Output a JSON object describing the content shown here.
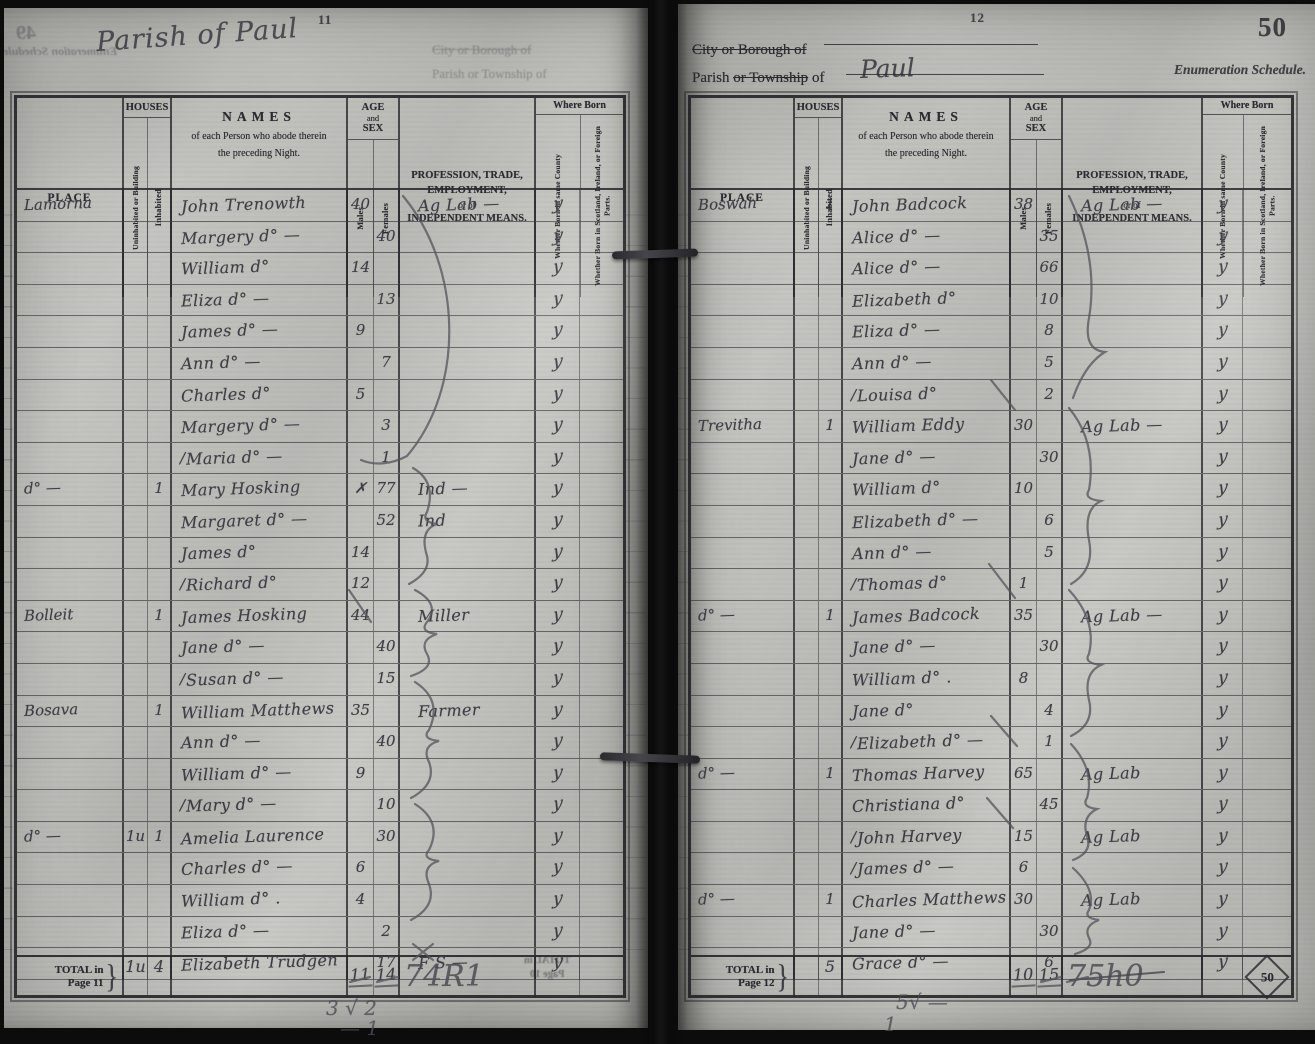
{
  "table_header": {
    "place": "PLACE",
    "houses": "HOUSES",
    "uninhabited": "Uninhabited or Building",
    "inhabited": "Inhabited",
    "names_title": "NAMES",
    "names_sub1": "of each Person who abode therein",
    "names_sub2": "the preceding Night.",
    "age_line1": "AGE",
    "age_line2": "and",
    "age_line3": "SEX",
    "males": "Males",
    "females": "Females",
    "profession_l1": "PROFESSION, TRADE,",
    "profession_l2": "EMPLOYMENT,",
    "profession_l3": "or of",
    "profession_l4": "INDEPENDENT MEANS.",
    "where_born": "Where Born",
    "born_same_county": "Whether Born in same County",
    "born_elsewhere": "Whether Born in Scotland, Ireland, or Foreign Parts."
  },
  "left_page": {
    "page_number": "11",
    "handwritten_title": "Parish of Paul",
    "bleed": {
      "corner": "49",
      "schedule": "Enumeration Schedule.",
      "line1": "City or Borough of",
      "line2": "Parish or Township of",
      "total1": "TOTAL in",
      "total2": "Page 10"
    },
    "pencil_note1": "3 √ 2",
    "pencil_note2": "— 1",
    "total_row": {
      "label1": "TOTAL in",
      "label2": "Page 11",
      "brace": "}",
      "u": "1u",
      "i": "4",
      "m": "11",
      "f": "14",
      "scribble": "74R1"
    },
    "rows": [
      {
        "place": "Lamorna",
        "u": "",
        "i": "",
        "mark": "",
        "name": "John Trenowth",
        "m": "40",
        "f": "",
        "prof": "Ag Lab —",
        "born": "y"
      },
      {
        "place": "",
        "u": "",
        "i": "",
        "mark": "",
        "name": "Margery d° —",
        "m": "",
        "f": "40",
        "prof": "",
        "born": "y"
      },
      {
        "place": "",
        "u": "",
        "i": "",
        "mark": "",
        "name": "William d°",
        "m": "14",
        "f": "",
        "prof": "",
        "born": "y"
      },
      {
        "place": "",
        "u": "",
        "i": "",
        "mark": "",
        "name": "Eliza d° —",
        "m": "",
        "f": "13",
        "prof": "",
        "born": "y"
      },
      {
        "place": "",
        "u": "",
        "i": "",
        "mark": "",
        "name": "James d° —",
        "m": "9",
        "f": "",
        "prof": "",
        "born": "y"
      },
      {
        "place": "",
        "u": "",
        "i": "",
        "mark": "",
        "name": "Ann d° —",
        "m": "",
        "f": "7",
        "prof": "",
        "born": "y"
      },
      {
        "place": "",
        "u": "",
        "i": "",
        "mark": "",
        "name": "Charles d°",
        "m": "5",
        "f": "",
        "prof": "",
        "born": "y"
      },
      {
        "place": "",
        "u": "",
        "i": "",
        "mark": "",
        "name": "Margery d° —",
        "m": "",
        "f": "3",
        "prof": "",
        "born": "y"
      },
      {
        "place": "",
        "u": "",
        "i": "",
        "mark": "∕",
        "name": "Maria d° —",
        "m": "",
        "f": "1",
        "prof": "",
        "born": "y"
      },
      {
        "place": "d° —",
        "u": "",
        "i": "1",
        "mark": "",
        "name": "Mary Hosking",
        "m": "✗",
        "f": "77",
        "prof": "Ind —",
        "born": "y"
      },
      {
        "place": "",
        "u": "",
        "i": "",
        "mark": "",
        "name": "Margaret d° —",
        "m": "",
        "f": "52",
        "prof": "Ind",
        "born": "y"
      },
      {
        "place": "",
        "u": "",
        "i": "",
        "mark": "",
        "name": "James d°",
        "m": "14",
        "f": "",
        "prof": "",
        "born": "y"
      },
      {
        "place": "",
        "u": "",
        "i": "",
        "mark": "∕",
        "name": "Richard d°",
        "m": "12",
        "f": "",
        "prof": "",
        "born": "y"
      },
      {
        "place": "Bolleit",
        "u": "",
        "i": "1",
        "mark": "",
        "name": "James Hosking",
        "m": "44",
        "f": "",
        "prof": "Miller",
        "born": "y"
      },
      {
        "place": "",
        "u": "",
        "i": "",
        "mark": "",
        "name": "Jane d° —",
        "m": "",
        "f": "40",
        "prof": "",
        "born": "y"
      },
      {
        "place": "",
        "u": "",
        "i": "",
        "mark": "∕",
        "name": "Susan d° —",
        "m": "",
        "f": "15",
        "prof": "",
        "born": "y"
      },
      {
        "place": "Bosava",
        "u": "",
        "i": "1",
        "mark": "",
        "name": "William Matthews",
        "m": "35",
        "f": "",
        "prof": "Farmer",
        "born": "y"
      },
      {
        "place": "",
        "u": "",
        "i": "",
        "mark": "",
        "name": "Ann d° —",
        "m": "",
        "f": "40",
        "prof": "",
        "born": "y"
      },
      {
        "place": "",
        "u": "",
        "i": "",
        "mark": "",
        "name": "William d° —",
        "m": "9",
        "f": "",
        "prof": "",
        "born": "y"
      },
      {
        "place": "",
        "u": "",
        "i": "",
        "mark": "∕",
        "name": "Mary d° —",
        "m": "",
        "f": "10",
        "prof": "",
        "born": "y"
      },
      {
        "place": "d° —",
        "u": "1u",
        "i": "1",
        "mark": "",
        "name": "Amelia Laurence",
        "m": "",
        "f": "30",
        "prof": "",
        "born": "y"
      },
      {
        "place": "",
        "u": "",
        "i": "",
        "mark": "",
        "name": "Charles d° —",
        "m": "6",
        "f": "",
        "prof": "",
        "born": "y"
      },
      {
        "place": "",
        "u": "",
        "i": "",
        "mark": "",
        "name": "William d° .",
        "m": "4",
        "f": "",
        "prof": "",
        "born": "y"
      },
      {
        "place": "",
        "u": "",
        "i": "",
        "mark": "",
        "name": "Eliza  d° —",
        "m": "",
        "f": "2",
        "prof": "",
        "born": "y"
      },
      {
        "place": "",
        "u": "",
        "i": "",
        "mark": "",
        "name": "Elizabeth Trudgen",
        "m": "",
        "f": "17",
        "prof": "F S —",
        "born": "y"
      }
    ]
  },
  "right_page": {
    "page_number": "12",
    "stamp_number": "50",
    "header": {
      "line1": "City or Borough of",
      "line2_a": "Parish",
      "line2_b": "or Township",
      "line2_c": "of",
      "parish_value": "Paul",
      "schedule": "Enumeration Schedule."
    },
    "pencil_note1": "5√ —",
    "pencil_note2": "1",
    "total_row": {
      "label1": "TOTAL in",
      "label2": "Page 12",
      "brace": "}",
      "u": "",
      "i": "5",
      "m": "10",
      "f": "15",
      "scribble": "75h0",
      "stamp": "50"
    },
    "rows": [
      {
        "place": "Boswah",
        "u": "",
        "i": "1",
        "mark": "",
        "name": "John Badcock",
        "m": "38",
        "f": "",
        "prof": "Ag Lab —",
        "born": "y"
      },
      {
        "place": "",
        "u": "",
        "i": "",
        "mark": "",
        "name": "Alice d° —",
        "m": "",
        "f": "35",
        "prof": "",
        "born": "y"
      },
      {
        "place": "",
        "u": "",
        "i": "",
        "mark": "",
        "name": "Alice d° —",
        "m": "",
        "f": "66",
        "prof": "",
        "born": "y"
      },
      {
        "place": "",
        "u": "",
        "i": "",
        "mark": "",
        "name": "Elizabeth d°",
        "m": "",
        "f": "10",
        "prof": "",
        "born": "y"
      },
      {
        "place": "",
        "u": "",
        "i": "",
        "mark": "",
        "name": "Eliza  d° —",
        "m": "",
        "f": "8",
        "prof": "",
        "born": "y"
      },
      {
        "place": "",
        "u": "",
        "i": "",
        "mark": "",
        "name": "Ann d° —",
        "m": "",
        "f": "5",
        "prof": "",
        "born": "y"
      },
      {
        "place": "",
        "u": "",
        "i": "",
        "mark": "∕",
        "name": "Louisa d°",
        "m": "",
        "f": "2",
        "prof": "",
        "born": "y"
      },
      {
        "place": "Trevitha",
        "u": "",
        "i": "1",
        "mark": "",
        "name": "William Eddy",
        "m": "30",
        "f": "",
        "prof": "Ag Lab —",
        "born": "y"
      },
      {
        "place": "",
        "u": "",
        "i": "",
        "mark": "",
        "name": "Jane d° —",
        "m": "",
        "f": "30",
        "prof": "",
        "born": "y"
      },
      {
        "place": "",
        "u": "",
        "i": "",
        "mark": "",
        "name": "William d°",
        "m": "10",
        "f": "",
        "prof": "",
        "born": "y"
      },
      {
        "place": "",
        "u": "",
        "i": "",
        "mark": "",
        "name": "Elizabeth d° —",
        "m": "",
        "f": "6",
        "prof": "",
        "born": "y"
      },
      {
        "place": "",
        "u": "",
        "i": "",
        "mark": "",
        "name": "Ann d° —",
        "m": "",
        "f": "5",
        "prof": "",
        "born": "y"
      },
      {
        "place": "",
        "u": "",
        "i": "",
        "mark": "∕",
        "name": "Thomas d°",
        "m": "1",
        "f": "",
        "prof": "",
        "born": "y"
      },
      {
        "place": "d° —",
        "u": "",
        "i": "1",
        "mark": "",
        "name": "James Badcock",
        "m": "35",
        "f": "",
        "prof": "Ag Lab —",
        "born": "y"
      },
      {
        "place": "",
        "u": "",
        "i": "",
        "mark": "",
        "name": "Jane d° —",
        "m": "",
        "f": "30",
        "prof": "",
        "born": "y"
      },
      {
        "place": "",
        "u": "",
        "i": "",
        "mark": "",
        "name": "William d° .",
        "m": "8",
        "f": "",
        "prof": "",
        "born": "y"
      },
      {
        "place": "",
        "u": "",
        "i": "",
        "mark": "",
        "name": "Jane  d°",
        "m": "",
        "f": "4",
        "prof": "",
        "born": "y"
      },
      {
        "place": "",
        "u": "",
        "i": "",
        "mark": "∕",
        "name": "Elizabeth d° —",
        "m": "",
        "f": "1",
        "prof": "",
        "born": "y"
      },
      {
        "place": "d° —",
        "u": "",
        "i": "1",
        "mark": "",
        "name": "Thomas Harvey",
        "m": "65",
        "f": "",
        "prof": "Ag Lab",
        "born": "y"
      },
      {
        "place": "",
        "u": "",
        "i": "",
        "mark": "",
        "name": "Christiana d°",
        "m": "",
        "f": "45",
        "prof": "",
        "born": "y"
      },
      {
        "place": "",
        "u": "",
        "i": "",
        "mark": "∕",
        "name": "John Harvey",
        "m": "15",
        "f": "",
        "prof": "Ag Lab",
        "born": "y"
      },
      {
        "place": "",
        "u": "",
        "i": "",
        "mark": "∕",
        "name": "James d° —",
        "m": "6",
        "f": "",
        "prof": "",
        "born": "y"
      },
      {
        "place": "d° —",
        "u": "",
        "i": "1",
        "mark": "",
        "name": "Charles Matthews",
        "m": "30",
        "f": "",
        "prof": "Ag Lab",
        "born": "y"
      },
      {
        "place": "",
        "u": "",
        "i": "",
        "mark": "",
        "name": "Jane d° —",
        "m": "",
        "f": "30",
        "prof": "",
        "born": "y"
      },
      {
        "place": "",
        "u": "",
        "i": "",
        "mark": "",
        "name": "Grace d° —",
        "m": "",
        "f": "6",
        "prof": "",
        "born": "y"
      }
    ]
  }
}
